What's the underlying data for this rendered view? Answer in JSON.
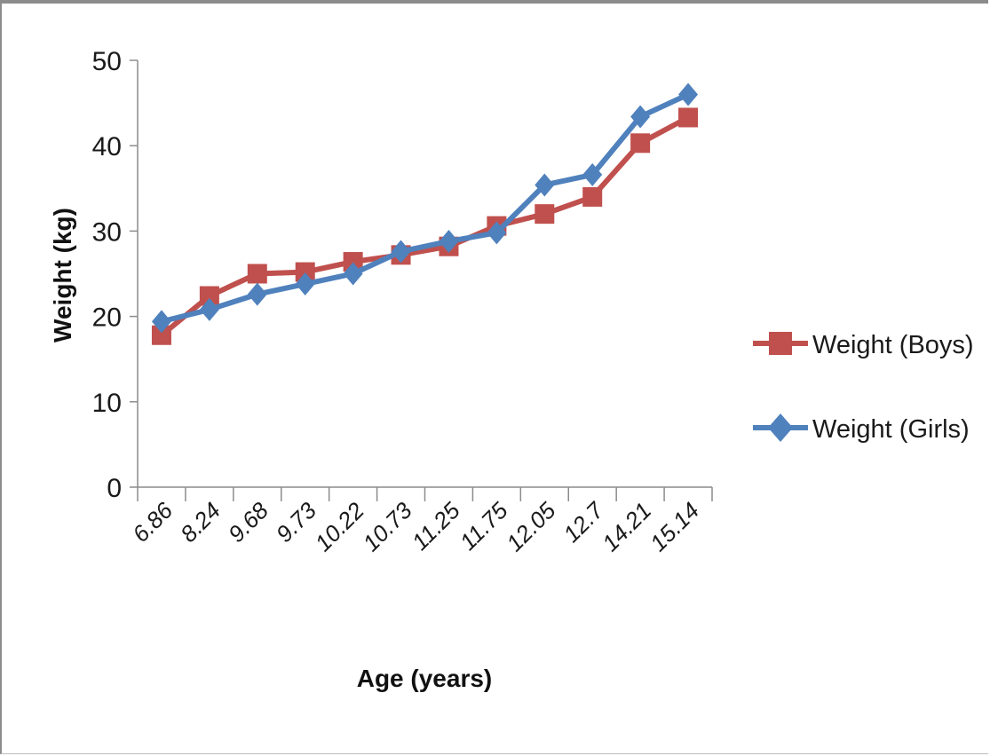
{
  "chart_data": {
    "type": "line",
    "categories": [
      "6.86",
      "8.24",
      "9.68",
      "9.73",
      "10.22",
      "10.73",
      "11.25",
      "11.75",
      "12.05",
      "12.7",
      "14.21",
      "15.14"
    ],
    "series": [
      {
        "name": "Weight (Boys)",
        "color": "#c0504d",
        "marker": "square",
        "values": [
          17.8,
          22.4,
          25.0,
          25.2,
          26.4,
          27.2,
          28.2,
          30.6,
          32.0,
          34.0,
          40.3,
          43.3
        ]
      },
      {
        "name": "Weight (Girls)",
        "color": "#4f81bd",
        "marker": "diamond",
        "values": [
          19.4,
          20.8,
          22.6,
          23.8,
          25.0,
          27.6,
          28.8,
          29.8,
          35.4,
          36.6,
          43.4,
          46.0
        ]
      }
    ],
    "xlabel": "Age (years)",
    "ylabel": "Weight (kg)",
    "ylim": [
      0,
      50
    ],
    "yticks": [
      0,
      10,
      20,
      30,
      40,
      50
    ],
    "grid": false,
    "legend_position": "right"
  }
}
